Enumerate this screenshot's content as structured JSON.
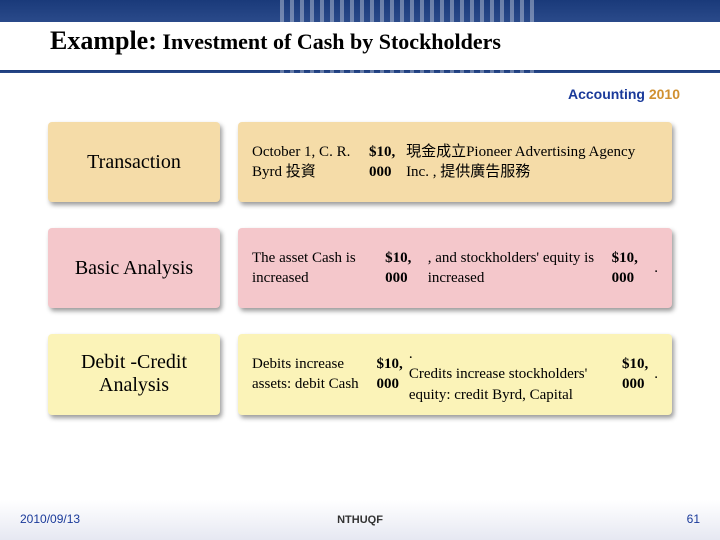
{
  "title": {
    "prefix": "Example:",
    "rest": " Investment of Cash by Stockholders"
  },
  "course": {
    "name": "Accounting ",
    "year": "2010"
  },
  "rows": [
    {
      "label": "Transaction",
      "label_bg": "#f5dca8",
      "content_bg": "#f5dca8",
      "content_html": "October 1, C. R. Byrd 投資 <b>$10, 000</b> 現金成立Pioneer Advertising Agency Inc. , 提供廣告服務"
    },
    {
      "label": "Basic Analysis",
      "label_bg": "#f4c7cb",
      "content_bg": "#f4c7cb",
      "content_html": "The asset Cash is increased <b>$10, 000</b>, and stockholders' equity is increased <b>$10, 000</b>."
    },
    {
      "label": "Debit -Credit Analysis",
      "label_bg": "#fbf3b8",
      "content_bg": "#fbf3b8",
      "content_html": "Debits increase assets:  debit Cash <b>$10, 000</b>.<br>Credits increase stockholders' equity:  credit Byrd, Capital <b>$10, 000</b>."
    }
  ],
  "footer": {
    "date": "2010/09/13",
    "center": "NTHUQF",
    "page": "61"
  },
  "colors": {
    "header_blue": "#1a3a7a",
    "accent_orange": "#d09030",
    "text_blue": "#1a3a9a"
  }
}
